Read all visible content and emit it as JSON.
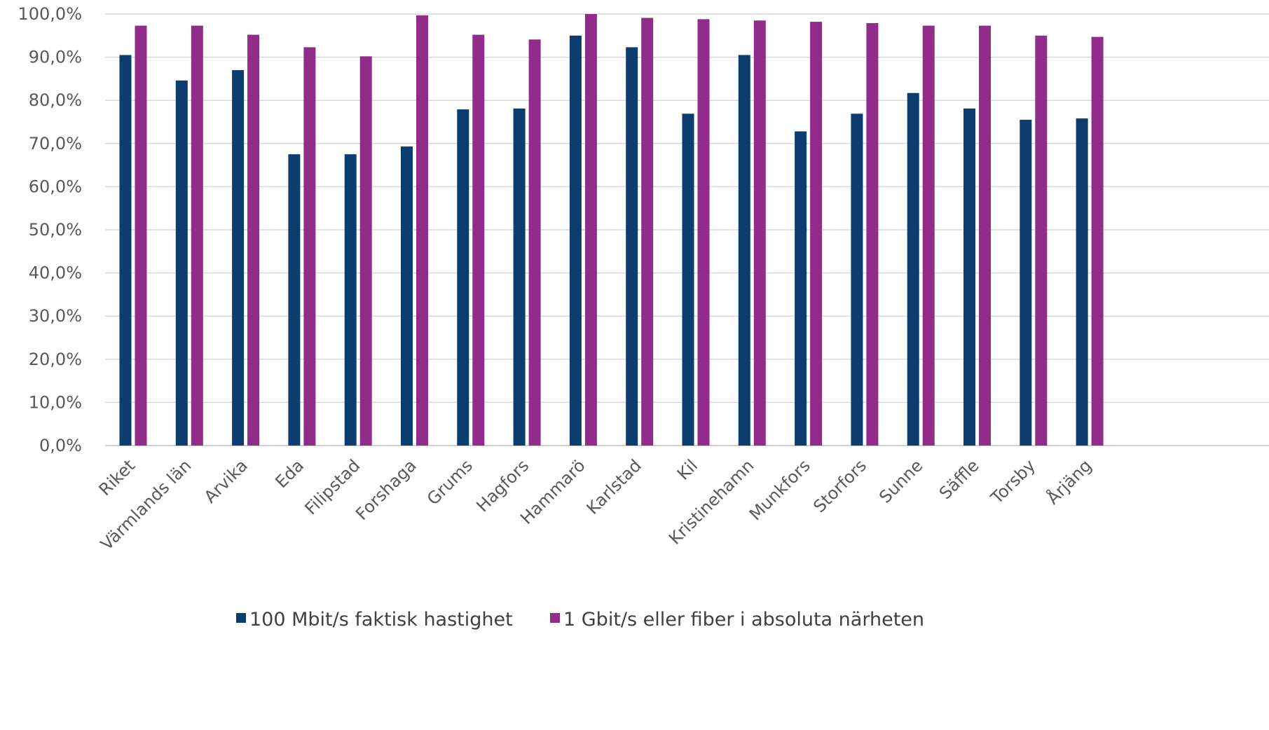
{
  "chart_data": {
    "type": "bar",
    "title": "",
    "xlabel": "",
    "ylabel": "",
    "ylim": [
      0,
      100
    ],
    "y_ticks": [
      "0,0%",
      "10,0%",
      "20,0%",
      "30,0%",
      "40,0%",
      "50,0%",
      "60,0%",
      "70,0%",
      "80,0%",
      "90,0%",
      "100,0%"
    ],
    "y_tick_values": [
      0,
      10,
      20,
      30,
      40,
      50,
      60,
      70,
      80,
      90,
      100
    ],
    "grid": true,
    "legend_position": "bottom",
    "categories": [
      "Riket",
      "Värmlands län",
      "Arvika",
      "Eda",
      "Filipstad",
      "Forshaga",
      "Grums",
      "Hagfors",
      "Hammarö",
      "Karlstad",
      "Kil",
      "Kristinehamn",
      "Munkfors",
      "Storfors",
      "Sunne",
      "Säffle",
      "Torsby",
      "Årjäng"
    ],
    "series": [
      {
        "name": "100 Mbit/s faktisk hastighet",
        "color": "#0b3d6e",
        "values": [
          90.5,
          84.6,
          87.0,
          67.5,
          67.5,
          69.3,
          77.9,
          78.1,
          95.0,
          92.3,
          76.9,
          90.5,
          72.8,
          76.9,
          81.7,
          78.1,
          75.5,
          75.8
        ]
      },
      {
        "name": "1 Gbit/s eller fiber i absoluta närheten",
        "color": "#922c8a",
        "values": [
          97.3,
          97.3,
          95.2,
          92.3,
          90.2,
          99.7,
          95.2,
          94.1,
          100.0,
          99.1,
          98.8,
          98.5,
          98.2,
          97.9,
          97.3,
          97.3,
          95.0,
          94.7
        ]
      }
    ]
  }
}
